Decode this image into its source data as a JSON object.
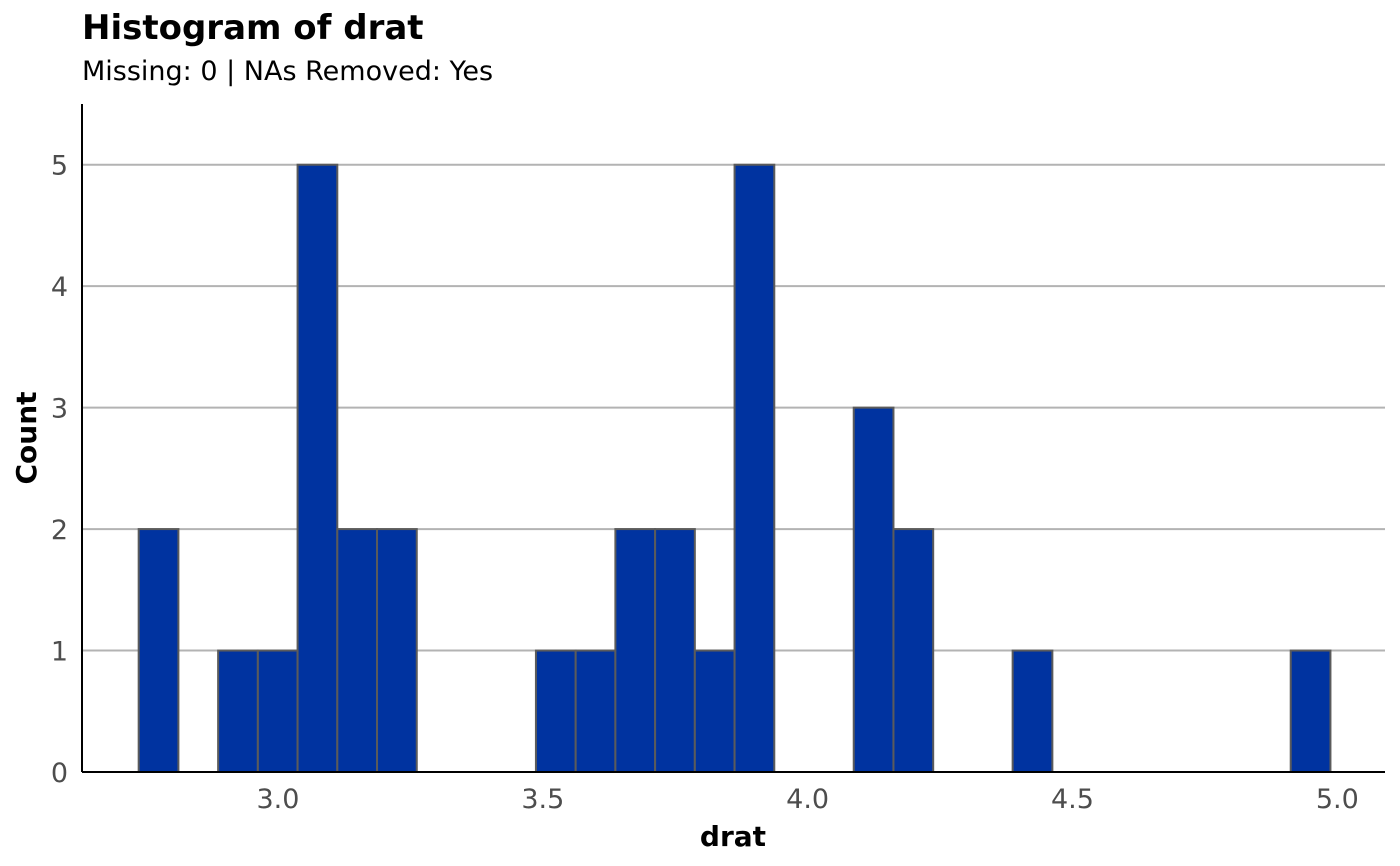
{
  "chart_data": {
    "type": "bar",
    "title": "Histogram of drat",
    "subtitle": "Missing: 0 | NAs Removed: Yes",
    "xlabel": "drat",
    "ylabel": "Count",
    "x_ticks": [
      "3.0",
      "3.5",
      "4.0",
      "4.5",
      "5.0"
    ],
    "x_tick_values": [
      3.0,
      3.5,
      4.0,
      4.5,
      5.0
    ],
    "y_ticks": [
      "0",
      "1",
      "2",
      "3",
      "4",
      "5"
    ],
    "y_tick_values": [
      0,
      1,
      2,
      3,
      4,
      5
    ],
    "xlim": [
      2.63,
      5.09
    ],
    "ylim": [
      0,
      5.5
    ],
    "bin_width": 0.075,
    "bin_starts": [
      2.737,
      2.812,
      2.887,
      2.962,
      3.037,
      3.112,
      3.187,
      3.262,
      3.337,
      3.412,
      3.487,
      3.562,
      3.637,
      3.712,
      3.787,
      3.862,
      3.937,
      4.012,
      4.087,
      4.162,
      4.237,
      4.312,
      4.387,
      4.462,
      4.537,
      4.612,
      4.687,
      4.762,
      4.837,
      4.912
    ],
    "values": [
      2,
      0,
      1,
      1,
      5,
      2,
      2,
      0,
      0,
      0,
      1,
      1,
      2,
      2,
      1,
      5,
      0,
      0,
      3,
      2,
      0,
      0,
      1,
      0,
      0,
      0,
      0,
      0,
      0,
      1
    ],
    "grid": "horizontal",
    "colors": {
      "bar_fill": "#0033a0",
      "bar_outline": "#5b5b5b",
      "grid": "#b3b3b3",
      "axis": "#000000"
    }
  }
}
